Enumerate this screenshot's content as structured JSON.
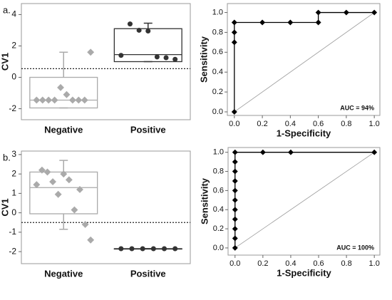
{
  "chart_data": [
    {
      "type": "box",
      "panel_label": "a.",
      "ylabel": "CV1",
      "categories": [
        "Negative",
        "Positive"
      ],
      "ylim": [
        -2.7,
        4.7
      ],
      "yticks": [
        -2,
        0,
        2,
        4
      ],
      "threshold": 0.55,
      "boxes": [
        {
          "low": -1.95,
          "q1": -1.95,
          "median": -1.45,
          "q3": 0,
          "high": 1.6,
          "color": "#aaaaaa",
          "points": [
            -1.45,
            -1.45,
            -1.45,
            -1.45,
            -0.65,
            -1.1,
            -1.45,
            -1.45,
            -1.45,
            1.6
          ]
        },
        {
          "low": 1.0,
          "q1": 1.0,
          "median": 1.45,
          "q3": 3.1,
          "high": 3.45,
          "color": "#333333",
          "points": [
            1.4,
            3.4,
            3.0,
            2.95,
            1.3,
            1.25,
            1.15
          ]
        }
      ]
    },
    {
      "type": "line",
      "xlabel": "1-Specificity",
      "ylabel": "Sensitivity",
      "annotation": "AUC = 94%",
      "color": "#000000",
      "x": [
        0,
        0,
        0,
        0,
        0.2,
        0.4,
        0.6,
        0.6,
        0.8,
        1.0
      ],
      "values": [
        0,
        0.7,
        0.8,
        0.9,
        0.9,
        0.9,
        0.9,
        1.0,
        1.0,
        1.0
      ],
      "xlim": [
        -0.05,
        1.04
      ],
      "ylim": [
        -0.036,
        1.09
      ],
      "xticks": [
        {
          "value": 0,
          "label": "0.0"
        },
        {
          "value": 0.2,
          "label": "0.2"
        },
        {
          "value": 0.4,
          "label": "0.4"
        },
        {
          "value": 0.6,
          "label": "0.6"
        },
        {
          "value": 0.8,
          "label": "0.8"
        },
        {
          "value": 1,
          "label": "1.0"
        }
      ],
      "yticks": [
        {
          "value": 0,
          "label": "0.0"
        },
        {
          "value": 0.2,
          "label": "0.2"
        },
        {
          "value": 0.4,
          "label": "0.4"
        },
        {
          "value": 0.6,
          "label": "0.6"
        },
        {
          "value": 0.8,
          "label": "0.8"
        },
        {
          "value": 1,
          "label": "1.0"
        }
      ]
    },
    {
      "type": "box",
      "panel_label": "b.",
      "ylabel": "CV1",
      "categories": [
        "Negative",
        "Positive"
      ],
      "ylim": [
        -2.62,
        3.18
      ],
      "yticks": [
        -2,
        -1,
        0,
        1,
        2,
        3
      ],
      "threshold": -0.5,
      "boxes": [
        {
          "low": -0.85,
          "q1": -0.05,
          "median": 1.3,
          "q3": 2.1,
          "high": 2.7,
          "color": "#aaaaaa",
          "points": [
            1.45,
            2.2,
            2.1,
            1.6,
            0.95,
            2.0,
            1.7,
            0.15,
            1.2,
            -0.6,
            -1.4
          ]
        },
        {
          "low": -1.85,
          "q1": -1.85,
          "median": -1.85,
          "q3": -1.85,
          "high": -1.85,
          "color": "#333333",
          "points": [
            -1.85,
            -1.85,
            -1.85,
            -1.85,
            -1.85,
            -1.85
          ]
        }
      ]
    },
    {
      "type": "line",
      "xlabel": "1-Specificity",
      "ylabel": "Sensitivity",
      "annotation": "AUC = 100%",
      "color": "#000000",
      "x": [
        0,
        0,
        0,
        0,
        0,
        0,
        0,
        0,
        0,
        0,
        0,
        0.2,
        0.4,
        1.0
      ],
      "values": [
        0,
        0.1,
        0.2,
        0.3,
        0.4,
        0.5,
        0.6,
        0.7,
        0.8,
        0.9,
        1.0,
        1.0,
        1.0,
        1.0
      ],
      "xlim": [
        -0.05,
        1.04
      ],
      "ylim": [
        -0.075,
        1.05
      ],
      "xticks": [
        {
          "value": 0,
          "label": "0.0"
        },
        {
          "value": 0.2,
          "label": "0.2"
        },
        {
          "value": 0.4,
          "label": "0.4"
        },
        {
          "value": 0.6,
          "label": "0.6"
        },
        {
          "value": 0.8,
          "label": "0.8"
        },
        {
          "value": 1,
          "label": "1.0"
        }
      ],
      "yticks": [
        {
          "value": 0,
          "label": "0.0"
        },
        {
          "value": 0.2,
          "label": "0.2"
        },
        {
          "value": 0.4,
          "label": "0.4"
        },
        {
          "value": 0.6,
          "label": "0.6"
        },
        {
          "value": 0.8,
          "label": "0.8"
        },
        {
          "value": 1,
          "label": "1.0"
        }
      ]
    }
  ]
}
